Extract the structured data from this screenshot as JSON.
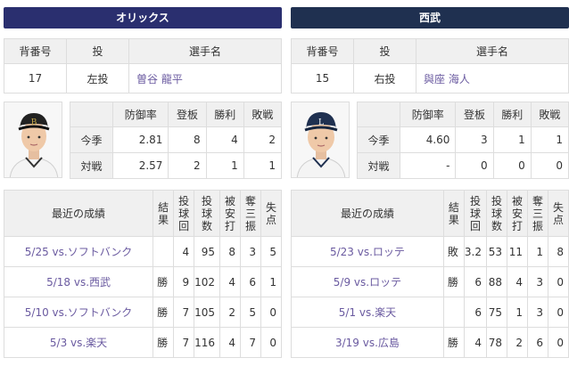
{
  "left": {
    "team": "オリックス",
    "headers": {
      "number": "背番号",
      "throw": "投",
      "name": "選手名"
    },
    "pitcher": {
      "number": "17",
      "throw": "左投",
      "name": "曽谷 龍平"
    },
    "stats_headers": [
      "防御率",
      "登板",
      "勝利",
      "敗戦"
    ],
    "stats": [
      {
        "label": "今季",
        "values": [
          "2.81",
          "8",
          "4",
          "2"
        ]
      },
      {
        "label": "対戦",
        "values": [
          "2.57",
          "2",
          "1",
          "1"
        ]
      }
    ],
    "recent_title": "最近の成績",
    "recent_cols": [
      "結果",
      "投球回",
      "投球数",
      "被安打",
      "奪三振",
      "失点"
    ],
    "recent": [
      {
        "game": "5/25 vs.ソフトバンク",
        "result": "",
        "ip": "4",
        "pitches": "95",
        "hits": "8",
        "so": "3",
        "runs": "5"
      },
      {
        "game": "5/18 vs.西武",
        "result": "勝",
        "ip": "9",
        "pitches": "102",
        "hits": "4",
        "so": "6",
        "runs": "1"
      },
      {
        "game": "5/10 vs.ソフトバンク",
        "result": "勝",
        "ip": "7",
        "pitches": "105",
        "hits": "2",
        "so": "5",
        "runs": "0"
      },
      {
        "game": "5/3 vs.楽天",
        "result": "勝",
        "ip": "7",
        "pitches": "116",
        "hits": "4",
        "so": "7",
        "runs": "0"
      }
    ]
  },
  "right": {
    "team": "西武",
    "headers": {
      "number": "背番号",
      "throw": "投",
      "name": "選手名"
    },
    "pitcher": {
      "number": "15",
      "throw": "右投",
      "name": "與座 海人"
    },
    "stats_headers": [
      "防御率",
      "登板",
      "勝利",
      "敗戦"
    ],
    "stats": [
      {
        "label": "今季",
        "values": [
          "4.60",
          "3",
          "1",
          "1"
        ]
      },
      {
        "label": "対戦",
        "values": [
          "-",
          "0",
          "0",
          "0"
        ]
      }
    ],
    "recent_title": "最近の成績",
    "recent_cols": [
      "結果",
      "投球回",
      "投球数",
      "被安打",
      "奪三振",
      "失点"
    ],
    "recent": [
      {
        "game": "5/23 vs.ロッテ",
        "result": "敗",
        "ip": "3.2",
        "pitches": "53",
        "hits": "11",
        "so": "1",
        "runs": "8"
      },
      {
        "game": "5/9 vs.ロッテ",
        "result": "勝",
        "ip": "6",
        "pitches": "88",
        "hits": "4",
        "so": "3",
        "runs": "0"
      },
      {
        "game": "5/1 vs.楽天",
        "result": "",
        "ip": "6",
        "pitches": "75",
        "hits": "1",
        "so": "3",
        "runs": "0"
      },
      {
        "game": "3/19 vs.広島",
        "result": "勝",
        "ip": "4",
        "pitches": "78",
        "hits": "2",
        "so": "6",
        "runs": "0"
      }
    ]
  },
  "colors": {
    "left_header": "#2a2f6f",
    "right_header": "#1f3050",
    "link": "#6a5aa0"
  },
  "icons": {
    "left_photo": "player-photo-orix",
    "right_photo": "player-photo-seibu"
  }
}
